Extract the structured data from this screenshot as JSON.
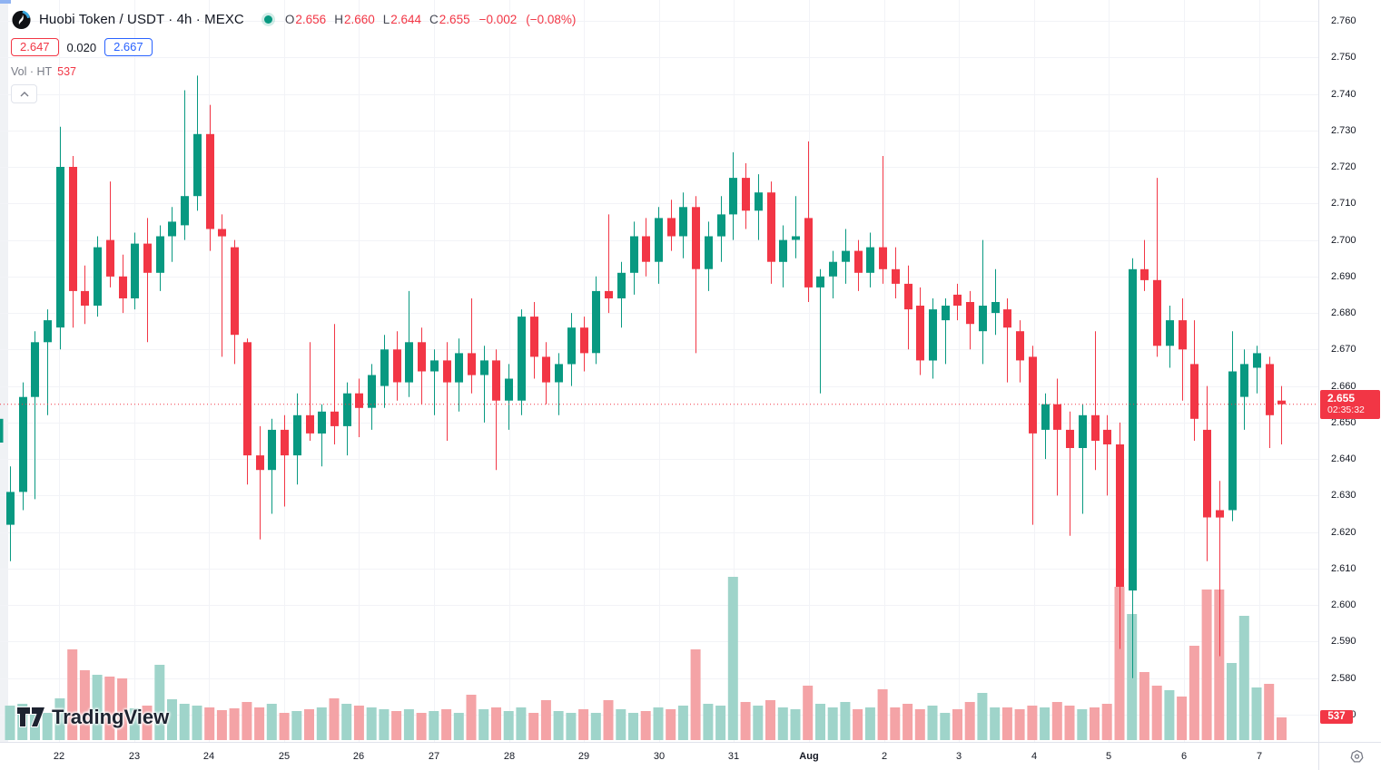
{
  "header": {
    "title": "Huobi Token / USDT · 4h · MEXC",
    "symbol_icon": "huobi-logo",
    "market_status_color": "#089981",
    "ohlc": {
      "o_label": "O",
      "o": "2.656",
      "h_label": "H",
      "h": "2.660",
      "l_label": "L",
      "l": "2.644",
      "c_label": "C",
      "c": "2.655",
      "change": "−0.002",
      "change_pct": "(−0.08%)"
    },
    "low_btn": "2.647",
    "range_val": "0.020",
    "high_btn": "2.667",
    "vol_label": "Vol · HT",
    "vol_value": "537"
  },
  "watermark": {
    "text": "TradingView"
  },
  "axes": {
    "price_ticks": [
      "2.760",
      "2.750",
      "2.740",
      "2.730",
      "2.720",
      "2.710",
      "2.700",
      "2.690",
      "2.680",
      "2.670",
      "2.660",
      "2.650",
      "2.640",
      "2.630",
      "2.620",
      "2.610",
      "2.600",
      "2.590",
      "2.580",
      "2.570"
    ],
    "time_ticks": [
      {
        "label": "22"
      },
      {
        "label": "23"
      },
      {
        "label": "24"
      },
      {
        "label": "25"
      },
      {
        "label": "26"
      },
      {
        "label": "27"
      },
      {
        "label": "28"
      },
      {
        "label": "29"
      },
      {
        "label": "30"
      },
      {
        "label": "31"
      },
      {
        "label": "Aug",
        "bold": true
      },
      {
        "label": "2"
      },
      {
        "label": "3"
      },
      {
        "label": "4"
      },
      {
        "label": "5"
      },
      {
        "label": "6"
      },
      {
        "label": "7"
      }
    ],
    "price_badge": {
      "price": "2.655",
      "countdown": "02:35:32",
      "color": "#f23645"
    },
    "vol_badge": {
      "value": "537",
      "color": "#f23645"
    }
  },
  "chart_data": {
    "type": "candlestick",
    "title": "Huobi Token / USDT · 4h · MEXC",
    "symbol": "HT/USDT",
    "interval": "4h",
    "exchange": "MEXC",
    "ylim": [
      2.57,
      2.76
    ],
    "price_step": 0.01,
    "grid": true,
    "last_price": 2.655,
    "countdown": "02:35:32",
    "time_labels": [
      "22",
      "23",
      "24",
      "25",
      "26",
      "27",
      "28",
      "29",
      "30",
      "31",
      "Aug",
      "2",
      "3",
      "4",
      "5",
      "6",
      "7"
    ],
    "colors": {
      "up": "#089981",
      "down": "#f23645",
      "vol_up": "#9fd4ca",
      "vol_down": "#f4a3a6",
      "grid": "#f2f3f7",
      "price_line": "#f23645"
    },
    "note": "candles = [open, high, low, close, volume_bar_height_px]",
    "candles": [
      [
        2.622,
        2.638,
        2.612,
        2.631,
        38
      ],
      [
        2.631,
        2.661,
        2.626,
        2.657,
        40
      ],
      [
        2.657,
        2.675,
        2.629,
        2.672,
        36
      ],
      [
        2.672,
        2.681,
        2.652,
        2.678,
        30
      ],
      [
        2.676,
        2.731,
        2.67,
        2.72,
        46
      ],
      [
        2.72,
        2.723,
        2.676,
        2.686,
        100
      ],
      [
        2.686,
        2.693,
        2.677,
        2.682,
        77
      ],
      [
        2.682,
        2.701,
        2.679,
        2.698,
        72
      ],
      [
        2.7,
        2.716,
        2.687,
        2.69,
        70
      ],
      [
        2.69,
        2.696,
        2.68,
        2.684,
        68
      ],
      [
        2.684,
        2.702,
        2.681,
        2.699,
        35
      ],
      [
        2.699,
        2.706,
        2.672,
        2.691,
        38
      ],
      [
        2.691,
        2.704,
        2.686,
        2.701,
        83
      ],
      [
        2.701,
        2.709,
        2.694,
        2.705,
        45
      ],
      [
        2.704,
        2.741,
        2.7,
        2.712,
        40
      ],
      [
        2.712,
        2.745,
        2.708,
        2.729,
        38
      ],
      [
        2.729,
        2.737,
        2.697,
        2.703,
        36
      ],
      [
        2.703,
        2.707,
        2.668,
        2.701,
        33
      ],
      [
        2.698,
        2.7,
        2.666,
        2.674,
        35
      ],
      [
        2.672,
        2.673,
        2.633,
        2.641,
        42
      ],
      [
        2.641,
        2.649,
        2.618,
        2.637,
        36
      ],
      [
        2.637,
        2.651,
        2.625,
        2.648,
        40
      ],
      [
        2.648,
        2.652,
        2.627,
        2.641,
        30
      ],
      [
        2.641,
        2.658,
        2.633,
        2.652,
        32
      ],
      [
        2.652,
        2.672,
        2.645,
        2.647,
        34
      ],
      [
        2.647,
        2.655,
        2.638,
        2.653,
        36
      ],
      [
        2.653,
        2.677,
        2.644,
        2.649,
        46
      ],
      [
        2.649,
        2.661,
        2.641,
        2.658,
        40
      ],
      [
        2.658,
        2.662,
        2.646,
        2.654,
        38
      ],
      [
        2.654,
        2.666,
        2.648,
        2.663,
        36
      ],
      [
        2.66,
        2.674,
        2.654,
        2.67,
        34
      ],
      [
        2.67,
        2.675,
        2.656,
        2.661,
        32
      ],
      [
        2.661,
        2.686,
        2.657,
        2.672,
        34
      ],
      [
        2.672,
        2.676,
        2.655,
        2.664,
        30
      ],
      [
        2.664,
        2.67,
        2.652,
        2.667,
        32
      ],
      [
        2.667,
        2.672,
        2.645,
        2.661,
        34
      ],
      [
        2.661,
        2.673,
        2.653,
        2.669,
        30
      ],
      [
        2.669,
        2.684,
        2.658,
        2.663,
        50
      ],
      [
        2.663,
        2.671,
        2.65,
        2.667,
        34
      ],
      [
        2.667,
        2.67,
        2.637,
        2.656,
        36
      ],
      [
        2.656,
        2.666,
        2.648,
        2.662,
        32
      ],
      [
        2.656,
        2.681,
        2.652,
        2.679,
        36
      ],
      [
        2.679,
        2.683,
        2.662,
        2.668,
        30
      ],
      [
        2.668,
        2.672,
        2.655,
        2.661,
        44
      ],
      [
        2.661,
        2.669,
        2.652,
        2.666,
        32
      ],
      [
        2.666,
        2.68,
        2.66,
        2.676,
        30
      ],
      [
        2.676,
        2.679,
        2.664,
        2.669,
        34
      ],
      [
        2.669,
        2.69,
        2.666,
        2.686,
        30
      ],
      [
        2.686,
        2.707,
        2.68,
        2.684,
        44
      ],
      [
        2.684,
        2.694,
        2.676,
        2.691,
        34
      ],
      [
        2.691,
        2.705,
        2.685,
        2.701,
        30
      ],
      [
        2.701,
        2.706,
        2.69,
        2.694,
        32
      ],
      [
        2.694,
        2.709,
        2.688,
        2.706,
        36
      ],
      [
        2.706,
        2.711,
        2.697,
        2.701,
        34
      ],
      [
        2.701,
        2.713,
        2.695,
        2.709,
        38
      ],
      [
        2.709,
        2.712,
        2.669,
        2.692,
        100
      ],
      [
        2.692,
        2.705,
        2.686,
        2.701,
        40
      ],
      [
        2.701,
        2.712,
        2.694,
        2.707,
        38
      ],
      [
        2.707,
        2.724,
        2.7,
        2.717,
        180
      ],
      [
        2.717,
        2.721,
        2.703,
        2.708,
        42
      ],
      [
        2.708,
        2.718,
        2.7,
        2.713,
        38
      ],
      [
        2.713,
        2.716,
        2.688,
        2.694,
        44
      ],
      [
        2.694,
        2.704,
        2.687,
        2.7,
        36
      ],
      [
        2.7,
        2.712,
        2.695,
        2.701,
        34
      ],
      [
        2.706,
        2.727,
        2.683,
        2.687,
        60
      ],
      [
        2.687,
        2.692,
        2.658,
        2.69,
        40
      ],
      [
        2.69,
        2.697,
        2.684,
        2.694,
        36
      ],
      [
        2.694,
        2.703,
        2.688,
        2.697,
        42
      ],
      [
        2.697,
        2.7,
        2.686,
        2.691,
        34
      ],
      [
        2.691,
        2.702,
        2.687,
        2.698,
        36
      ],
      [
        2.698,
        2.723,
        2.688,
        2.692,
        56
      ],
      [
        2.692,
        2.698,
        2.684,
        2.688,
        36
      ],
      [
        2.688,
        2.693,
        2.67,
        2.681,
        40
      ],
      [
        2.682,
        2.687,
        2.663,
        2.667,
        34
      ],
      [
        2.667,
        2.684,
        2.662,
        2.681,
        38
      ],
      [
        2.678,
        2.684,
        2.666,
        2.682,
        30
      ],
      [
        2.685,
        2.688,
        2.678,
        2.682,
        34
      ],
      [
        2.683,
        2.686,
        2.67,
        2.677,
        42
      ],
      [
        2.675,
        2.7,
        2.666,
        2.682,
        52
      ],
      [
        2.68,
        2.692,
        2.674,
        2.683,
        36
      ],
      [
        2.681,
        2.684,
        2.661,
        2.676,
        36
      ],
      [
        2.675,
        2.678,
        2.661,
        2.667,
        34
      ],
      [
        2.668,
        2.671,
        2.622,
        2.647,
        38
      ],
      [
        2.648,
        2.658,
        2.64,
        2.655,
        36
      ],
      [
        2.655,
        2.662,
        2.63,
        2.648,
        42
      ],
      [
        2.648,
        2.653,
        2.619,
        2.643,
        38
      ],
      [
        2.643,
        2.655,
        2.625,
        2.652,
        34
      ],
      [
        2.652,
        2.675,
        2.637,
        2.645,
        36
      ],
      [
        2.648,
        2.652,
        2.63,
        2.644,
        40
      ],
      [
        2.644,
        2.65,
        2.588,
        2.605,
        169
      ],
      [
        2.604,
        2.695,
        2.58,
        2.692,
        139
      ],
      [
        2.692,
        2.7,
        2.686,
        2.689,
        75
      ],
      [
        2.689,
        2.717,
        2.668,
        2.671,
        60
      ],
      [
        2.671,
        2.682,
        2.665,
        2.678,
        55
      ],
      [
        2.678,
        2.684,
        2.656,
        2.67,
        48
      ],
      [
        2.666,
        2.678,
        2.645,
        2.651,
        104
      ],
      [
        2.648,
        2.66,
        2.612,
        2.624,
        166
      ],
      [
        2.626,
        2.634,
        2.586,
        2.624,
        166
      ],
      [
        2.626,
        2.675,
        2.623,
        2.664,
        85
      ],
      [
        2.657,
        2.67,
        2.648,
        2.666,
        137
      ],
      [
        2.665,
        2.671,
        2.658,
        2.669,
        58
      ],
      [
        2.666,
        2.668,
        2.643,
        2.652,
        62
      ],
      [
        2.656,
        2.66,
        2.644,
        2.655,
        25
      ]
    ],
    "edge_partial_candle": {
      "body_top": 2.651,
      "body_bottom": 2.6445
    }
  }
}
